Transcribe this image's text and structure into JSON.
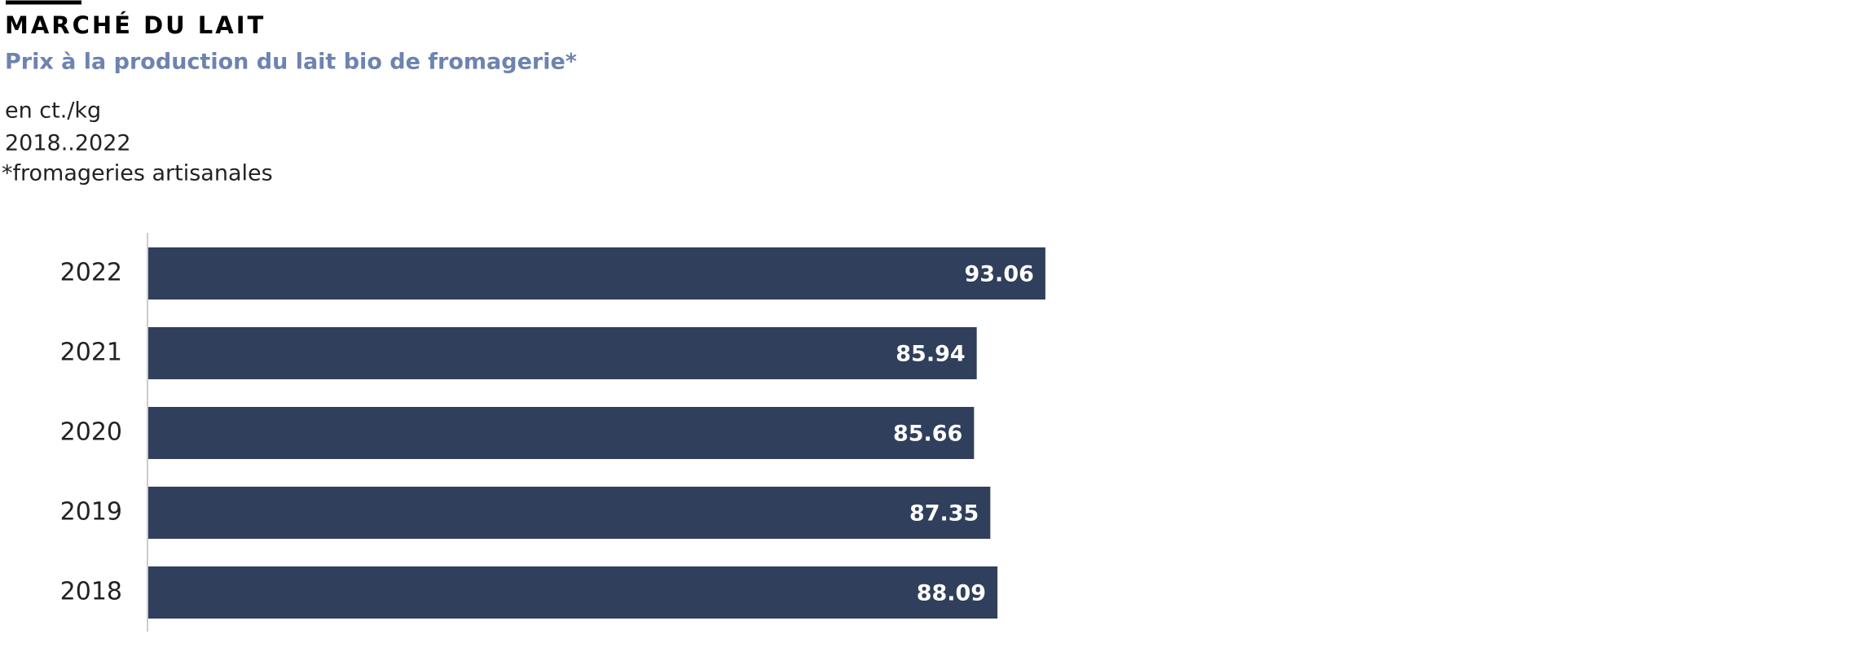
{
  "chart_data": {
    "type": "barh",
    "title": "MARCHÉ DU LAIT",
    "subtitle": "Prix à la production du lait bio de fromagerie*",
    "unit": "en ct./kg",
    "period": "2018..2022",
    "note": "*fromageries artisanales",
    "categories": [
      "2022",
      "2021",
      "2020",
      "2019",
      "2018"
    ],
    "values": [
      93.06,
      85.94,
      85.66,
      87.35,
      88.09
    ],
    "color": "#2f3f5c",
    "xlim": [
      0,
      100
    ]
  }
}
